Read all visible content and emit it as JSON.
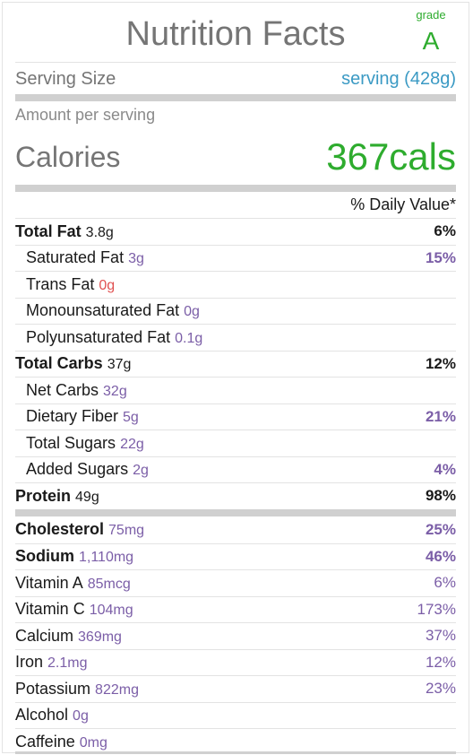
{
  "header": {
    "title": "Nutrition Facts",
    "grade_label": "grade",
    "grade_value": "A"
  },
  "serving": {
    "label": "Serving Size",
    "value": "serving (428g)"
  },
  "amount_per_serving": "Amount per serving",
  "calories": {
    "label": "Calories",
    "value": "367cals"
  },
  "daily_value_header": "% Daily Value*",
  "nutrients_main": [
    {
      "name": "Total Fat",
      "amount": "3.8g",
      "percent": "6%"
    },
    {
      "name": "Saturated Fat",
      "amount": "3g",
      "percent": "15%"
    },
    {
      "name": "Trans Fat",
      "amount": "0g",
      "percent": ""
    },
    {
      "name": "Monounsaturated Fat",
      "amount": "0g",
      "percent": ""
    },
    {
      "name": "Polyunsaturated Fat",
      "amount": "0.1g",
      "percent": ""
    },
    {
      "name": "Total Carbs",
      "amount": "37g",
      "percent": "12%"
    },
    {
      "name": "Net Carbs",
      "amount": "32g",
      "percent": ""
    },
    {
      "name": "Dietary Fiber",
      "amount": "5g",
      "percent": "21%"
    },
    {
      "name": "Total Sugars",
      "amount": "22g",
      "percent": ""
    },
    {
      "name": "Added Sugars",
      "amount": "2g",
      "percent": "4%"
    },
    {
      "name": "Protein",
      "amount": "49g",
      "percent": "98%"
    }
  ],
  "nutrients_minor": [
    {
      "name": "Cholesterol",
      "amount": "75mg",
      "percent": "25%"
    },
    {
      "name": "Sodium",
      "amount": "1,110mg",
      "percent": "46%"
    },
    {
      "name": "Vitamin A",
      "amount": "85mcg",
      "percent": "6%"
    },
    {
      "name": "Vitamin C",
      "amount": "104mg",
      "percent": "173%"
    },
    {
      "name": "Calcium",
      "amount": "369mg",
      "percent": "37%"
    },
    {
      "name": "Iron",
      "amount": "2.1mg",
      "percent": "12%"
    },
    {
      "name": "Potassium",
      "amount": "822mg",
      "percent": "23%"
    },
    {
      "name": "Alcohol",
      "amount": "0g",
      "percent": ""
    },
    {
      "name": "Caffeine",
      "amount": "0mg",
      "percent": ""
    }
  ],
  "colors": {
    "grade": "#2eac2e",
    "calories": "#2eac2e",
    "serving_value": "#3b9ac4",
    "amount": "#7b5ea7",
    "trans_fat_amount": "#e05050"
  }
}
